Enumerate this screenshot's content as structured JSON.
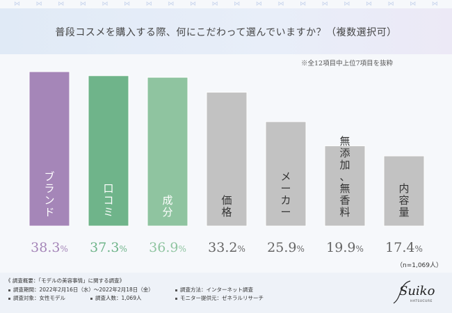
{
  "title": "普段コスメを購入する際、何にこだわって選んでいますか？（複数選択可）",
  "note": "※全12項目中上位7項目を抜粋",
  "sample_note": "（n=1,069人）",
  "chart_data": {
    "type": "bar",
    "categories": [
      "ブランド",
      "口コミ",
      "成分",
      "価格",
      "メーカー",
      "無添加、無香料",
      "内容量"
    ],
    "values": [
      38.3,
      37.3,
      36.9,
      33.2,
      25.9,
      19.9,
      17.4
    ],
    "value_labels": [
      {
        "int": "38.3",
        "unit": "%"
      },
      {
        "int": "37.3",
        "unit": "%"
      },
      {
        "int": "36.9",
        "unit": "%"
      },
      {
        "int": "33.2",
        "unit": "%"
      },
      {
        "int": "25.9",
        "unit": "%"
      },
      {
        "int": "19.9",
        "unit": "%"
      },
      {
        "int": "17.4",
        "unit": "%"
      }
    ],
    "colors": [
      "#a586b8",
      "#6fb48a",
      "#8fc4a0",
      "#c2c2c2",
      "#c2c2c2",
      "#c2c2c2",
      "#c2c2c2"
    ],
    "label_colors": [
      "#a586b8",
      "#6fb48a",
      "#8fc4a0",
      "#666666",
      "#666666",
      "#666666",
      "#666666"
    ],
    "bar_text_colors": [
      "#ffffff",
      "#ffffff",
      "#ffffff",
      "#333333",
      "#333333",
      "#333333",
      "#333333"
    ],
    "ylim": [
      0,
      40
    ],
    "xlabel": "",
    "ylabel": ""
  },
  "survey": {
    "heading": "《 調査概要：「モデルの美容事情」に関する調査》",
    "period": "調査期間：2022年2月16日（水）〜2022年2月18日（金）",
    "method": "調査方法：インターネット調査",
    "target": "調査対象：女性モデル",
    "count": "調査人数：1,069人",
    "provider": "モニター提供元：ゼネラルリサーチ"
  },
  "brand": {
    "name": "Suiko",
    "sub": "HATSUCURE"
  }
}
